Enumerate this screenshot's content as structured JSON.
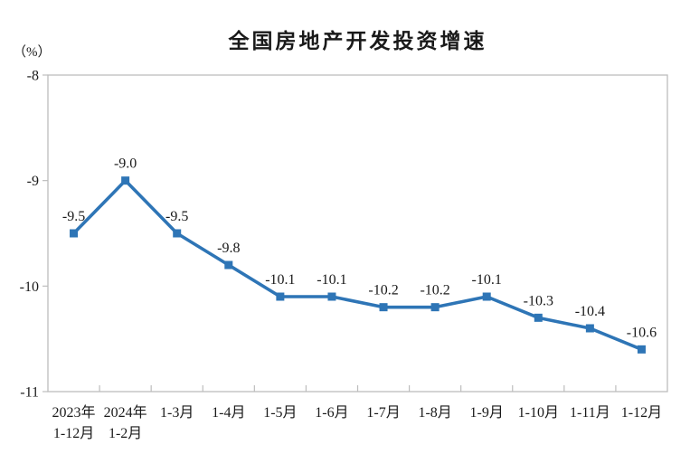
{
  "page": {
    "background": "#ffffff"
  },
  "chart_data": {
    "type": "line",
    "title": "全国房地产开发投资增速",
    "unit_label": "（%）",
    "categories": [
      [
        "2023年",
        "1-12月"
      ],
      [
        "2024年",
        "1-2月"
      ],
      [
        "1-3月"
      ],
      [
        "1-4月"
      ],
      [
        "1-5月"
      ],
      [
        "1-6月"
      ],
      [
        "1-7月"
      ],
      [
        "1-8月"
      ],
      [
        "1-9月"
      ],
      [
        "1-10月"
      ],
      [
        "1-11月"
      ],
      [
        "1-12月"
      ]
    ],
    "values": [
      -9.5,
      -9.0,
      -9.5,
      -9.8,
      -10.1,
      -10.1,
      -10.2,
      -10.2,
      -10.1,
      -10.3,
      -10.4,
      -10.6
    ],
    "data_labels": [
      "-9.5",
      "-9.0",
      "-9.5",
      "-9.8",
      "-10.1",
      "-10.1",
      "-10.2",
      "-10.2",
      "-10.1",
      "-10.3",
      "-10.4",
      "-10.6"
    ],
    "ylim": [
      -11,
      -8
    ],
    "yticks": [
      -8,
      -9,
      -10,
      -11
    ],
    "grid": false,
    "legend_position": "none",
    "marker": "square",
    "series_color": "#2E75B6",
    "label_color": "#1a1a1a",
    "axis_color": "#bdbdbd"
  }
}
